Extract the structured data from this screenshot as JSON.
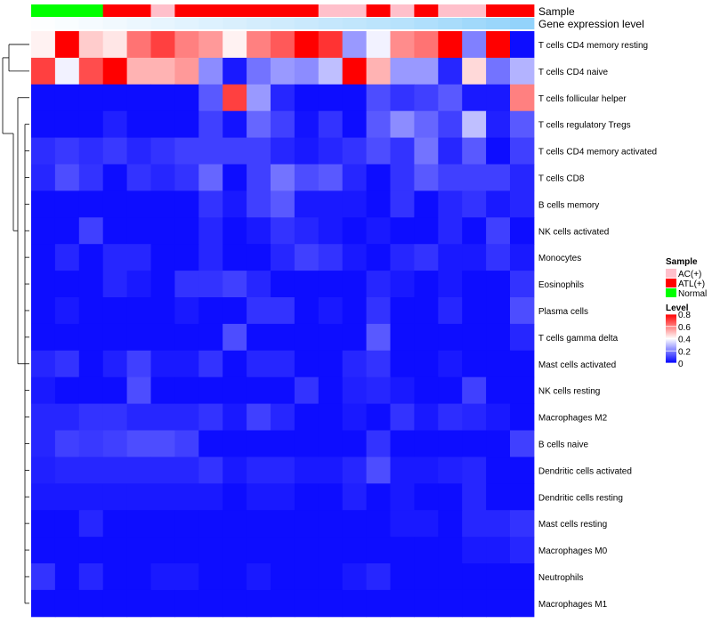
{
  "chart_data": {
    "type": "heatmap",
    "title": "",
    "annotations": [
      {
        "name": "Sample",
        "type": "categorical",
        "values": [
          "Normal",
          "Normal",
          "Normal",
          "ATL(+)",
          "ATL(+)",
          "AC(+)",
          "ATL(+)",
          "ATL(+)",
          "ATL(+)",
          "ATL(+)",
          "ATL(+)",
          "ATL(+)",
          "AC(+)",
          "AC(+)",
          "ATL(+)",
          "AC(+)",
          "ATL(+)",
          "AC(+)",
          "AC(+)",
          "ATL(+)",
          "ATL(+)"
        ]
      },
      {
        "name": "Gene expression level",
        "type": "gradient",
        "values": [
          0.02,
          0.05,
          0.08,
          0.12,
          0.16,
          0.2,
          0.24,
          0.28,
          0.32,
          0.36,
          0.4,
          0.44,
          0.48,
          0.52,
          0.56,
          0.6,
          0.66,
          0.72,
          0.78,
          0.84,
          0.9
        ]
      }
    ],
    "row_labels": [
      "T cells CD4 memory resting",
      "T cells CD4 naive",
      "T cells follicular helper",
      "T cells regulatory  Tregs",
      "T cells CD4 memory activated",
      "T cells CD8",
      "B cells memory",
      "NK cells activated",
      "Monocytes",
      "Eosinophils",
      "Plasma cells",
      "T cells gamma delta",
      "Mast cells activated",
      "NK cells resting",
      "Macrophages M2",
      "B cells naive",
      "Dendritic cells activated",
      "Dendritic cells resting",
      "Mast cells resting",
      "Macrophages M0",
      "Neutrophils",
      "Macrophages M1"
    ],
    "values": [
      [
        0.42,
        0.8,
        0.48,
        0.44,
        0.62,
        0.7,
        0.6,
        0.56,
        0.42,
        0.6,
        0.66,
        0.8,
        0.72,
        0.24,
        0.38,
        0.58,
        0.62,
        0.8,
        0.2,
        0.8,
        0.02
      ],
      [
        0.7,
        0.38,
        0.68,
        0.8,
        0.52,
        0.52,
        0.56,
        0.22,
        0.04,
        0.18,
        0.24,
        0.22,
        0.3,
        0.8,
        0.52,
        0.24,
        0.24,
        0.06,
        0.46,
        0.18,
        0.28
      ],
      [
        0.02,
        0.02,
        0.02,
        0.02,
        0.02,
        0.02,
        0.02,
        0.14,
        0.7,
        0.24,
        0.06,
        0.02,
        0.02,
        0.02,
        0.12,
        0.08,
        0.1,
        0.14,
        0.04,
        0.04,
        0.6
      ],
      [
        0.02,
        0.02,
        0.02,
        0.05,
        0.02,
        0.02,
        0.02,
        0.1,
        0.03,
        0.16,
        0.1,
        0.03,
        0.08,
        0.02,
        0.14,
        0.22,
        0.16,
        0.1,
        0.3,
        0.05,
        0.14
      ],
      [
        0.07,
        0.09,
        0.07,
        0.09,
        0.06,
        0.08,
        0.1,
        0.1,
        0.1,
        0.1,
        0.06,
        0.04,
        0.06,
        0.08,
        0.12,
        0.08,
        0.18,
        0.06,
        0.14,
        0.02,
        0.1
      ],
      [
        0.06,
        0.12,
        0.08,
        0.02,
        0.08,
        0.06,
        0.08,
        0.16,
        0.02,
        0.1,
        0.18,
        0.12,
        0.14,
        0.06,
        0.02,
        0.08,
        0.14,
        0.1,
        0.1,
        0.1,
        0.06
      ],
      [
        0.02,
        0.02,
        0.02,
        0.02,
        0.02,
        0.02,
        0.02,
        0.08,
        0.04,
        0.1,
        0.14,
        0.04,
        0.04,
        0.04,
        0.02,
        0.08,
        0.02,
        0.06,
        0.08,
        0.04,
        0.06
      ],
      [
        0.02,
        0.02,
        0.1,
        0.02,
        0.02,
        0.02,
        0.02,
        0.06,
        0.02,
        0.04,
        0.08,
        0.06,
        0.04,
        0.02,
        0.04,
        0.02,
        0.02,
        0.06,
        0.02,
        0.1,
        0.02
      ],
      [
        0.02,
        0.06,
        0.02,
        0.06,
        0.06,
        0.02,
        0.02,
        0.06,
        0.02,
        0.02,
        0.06,
        0.1,
        0.08,
        0.04,
        0.02,
        0.06,
        0.08,
        0.04,
        0.04,
        0.08,
        0.04
      ],
      [
        0.02,
        0.02,
        0.02,
        0.06,
        0.04,
        0.02,
        0.08,
        0.08,
        0.1,
        0.06,
        0.02,
        0.02,
        0.02,
        0.02,
        0.06,
        0.04,
        0.02,
        0.04,
        0.02,
        0.02,
        0.08
      ],
      [
        0.02,
        0.04,
        0.02,
        0.02,
        0.02,
        0.02,
        0.04,
        0.02,
        0.02,
        0.08,
        0.08,
        0.02,
        0.04,
        0.02,
        0.08,
        0.02,
        0.02,
        0.06,
        0.02,
        0.02,
        0.12
      ],
      [
        0.02,
        0.02,
        0.02,
        0.02,
        0.02,
        0.02,
        0.02,
        0.02,
        0.12,
        0.02,
        0.02,
        0.02,
        0.02,
        0.02,
        0.14,
        0.02,
        0.02,
        0.02,
        0.02,
        0.02,
        0.06
      ],
      [
        0.06,
        0.08,
        0.02,
        0.05,
        0.1,
        0.04,
        0.04,
        0.08,
        0.02,
        0.06,
        0.06,
        0.02,
        0.02,
        0.06,
        0.08,
        0.02,
        0.02,
        0.04,
        0.02,
        0.02,
        0.02
      ],
      [
        0.04,
        0.02,
        0.02,
        0.02,
        0.12,
        0.02,
        0.02,
        0.02,
        0.02,
        0.02,
        0.02,
        0.08,
        0.02,
        0.05,
        0.06,
        0.04,
        0.02,
        0.02,
        0.1,
        0.02,
        0.02
      ],
      [
        0.06,
        0.06,
        0.08,
        0.08,
        0.06,
        0.06,
        0.06,
        0.08,
        0.04,
        0.1,
        0.06,
        0.02,
        0.02,
        0.04,
        0.02,
        0.08,
        0.04,
        0.07,
        0.06,
        0.04,
        0.02
      ],
      [
        0.06,
        0.1,
        0.09,
        0.1,
        0.12,
        0.12,
        0.1,
        0.02,
        0.02,
        0.02,
        0.02,
        0.02,
        0.02,
        0.02,
        0.08,
        0.02,
        0.02,
        0.02,
        0.02,
        0.02,
        0.1
      ],
      [
        0.05,
        0.06,
        0.06,
        0.06,
        0.06,
        0.06,
        0.06,
        0.08,
        0.04,
        0.06,
        0.06,
        0.04,
        0.04,
        0.06,
        0.12,
        0.04,
        0.04,
        0.05,
        0.06,
        0.02,
        0.02
      ],
      [
        0.04,
        0.04,
        0.04,
        0.04,
        0.04,
        0.04,
        0.04,
        0.04,
        0.02,
        0.04,
        0.04,
        0.02,
        0.02,
        0.05,
        0.02,
        0.04,
        0.02,
        0.02,
        0.06,
        0.02,
        0.02
      ],
      [
        0.02,
        0.02,
        0.06,
        0.02,
        0.02,
        0.02,
        0.02,
        0.02,
        0.02,
        0.02,
        0.02,
        0.02,
        0.02,
        0.02,
        0.02,
        0.04,
        0.04,
        0.02,
        0.06,
        0.06,
        0.08
      ],
      [
        0.02,
        0.02,
        0.02,
        0.02,
        0.02,
        0.02,
        0.02,
        0.02,
        0.02,
        0.02,
        0.02,
        0.02,
        0.02,
        0.02,
        0.02,
        0.02,
        0.02,
        0.02,
        0.04,
        0.04,
        0.06
      ],
      [
        0.08,
        0.02,
        0.06,
        0.02,
        0.02,
        0.04,
        0.04,
        0.02,
        0.02,
        0.04,
        0.02,
        0.02,
        0.02,
        0.04,
        0.06,
        0.02,
        0.02,
        0.02,
        0.02,
        0.02,
        0.02
      ],
      [
        0.02,
        0.02,
        0.02,
        0.02,
        0.02,
        0.02,
        0.02,
        0.02,
        0.02,
        0.02,
        0.02,
        0.02,
        0.02,
        0.02,
        0.02,
        0.02,
        0.02,
        0.02,
        0.02,
        0.02,
        0.02
      ]
    ],
    "color_scale": {
      "min": 0,
      "max": 0.8,
      "low": "#0000ff",
      "mid": "#ffffff",
      "mid_value": 0.4,
      "high": "#ff0000"
    },
    "row_dendrogram": true,
    "legend": {
      "position": "right",
      "sample_title": "Sample",
      "sample_entries": [
        {
          "label": "AC(+)",
          "color": "#ffc0cb"
        },
        {
          "label": "ATL(+)",
          "color": "#ff0000"
        },
        {
          "label": "Normal",
          "color": "#00ff00"
        }
      ],
      "level_title": "Level",
      "level_ticks": [
        "0.8",
        "0.6",
        "0.4",
        "0.2",
        "0"
      ],
      "level_tick_values": [
        0.8,
        0.6,
        0.4,
        0.2,
        0
      ]
    }
  }
}
